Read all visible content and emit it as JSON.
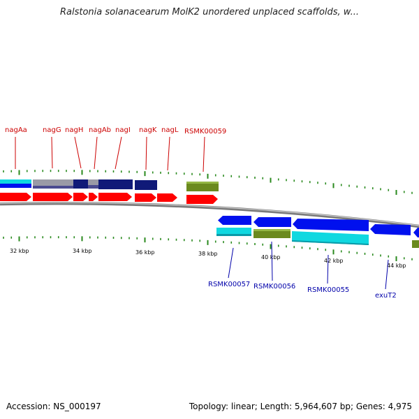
{
  "title": "Ralstonia solanacearum MolK2 unordered unplaced scaffolds, w...",
  "footer": {
    "accession": "Accession: NS_000197",
    "summary": "Topology: linear; Length: 5,964,607 bp; Genes: 4,975"
  },
  "colors": {
    "plus_label": "#cc0000",
    "minus_label": "#0000aa",
    "cds_red": "#ff0000",
    "navy": "#101a78",
    "blue": "#0010ee",
    "cyan": "#10d8e0",
    "olive": "#6b8a1e",
    "grey": "#9a9aa6"
  },
  "scale_labels": [
    "32 kbp",
    "34 kbp",
    "36 kbp",
    "38 kbp",
    "40 kbp",
    "42 kbp",
    "44 kbp"
  ],
  "top_genes": [
    "nagAa",
    "nagG",
    "nagH",
    "nagAb",
    "nagI",
    "nagK",
    "nagL",
    "RSMK00059"
  ],
  "bottom_genes": [
    "RSMK00057",
    "RSMK00056",
    "RSMK00055",
    "exuT2"
  ]
}
